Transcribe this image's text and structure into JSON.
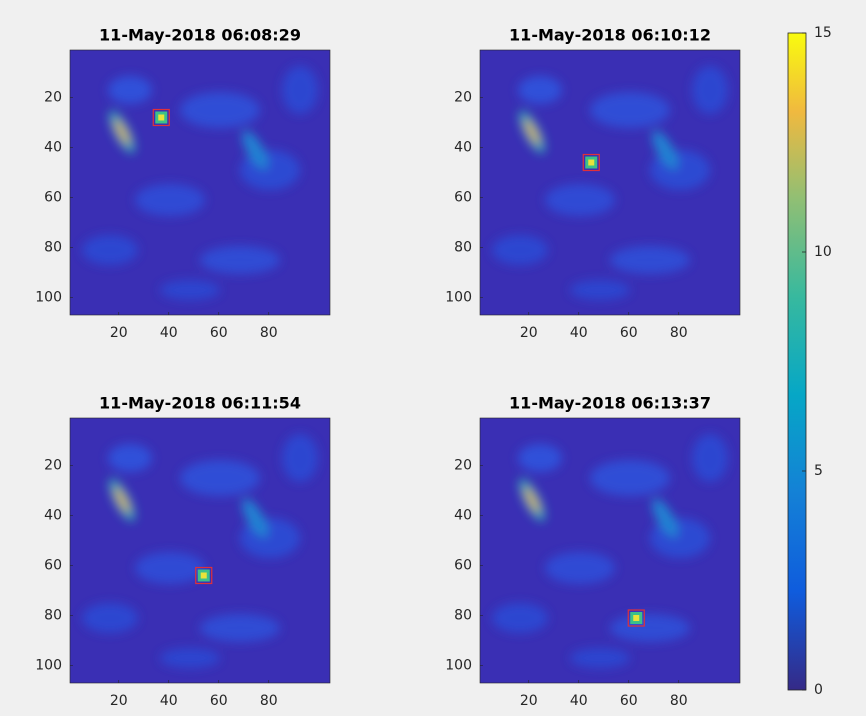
{
  "chart_data": [
    {
      "type": "heatmap",
      "title": "11-May-2018 06:08:29",
      "xlim": [
        0.5,
        104.5
      ],
      "ylim": [
        1,
        107
      ],
      "y_reversed": true,
      "xticks": [
        20,
        40,
        60,
        80
      ],
      "yticks": [
        20,
        40,
        60,
        80,
        100
      ],
      "marker": {
        "x": 37,
        "y": 28
      },
      "marker_color": "#e0303a"
    },
    {
      "type": "heatmap",
      "title": "11-May-2018 06:10:12",
      "xlim": [
        0.5,
        104.5
      ],
      "ylim": [
        1,
        107
      ],
      "y_reversed": true,
      "xticks": [
        20,
        40,
        60,
        80
      ],
      "yticks": [
        20,
        40,
        60,
        80,
        100
      ],
      "marker": {
        "x": 45,
        "y": 46
      },
      "marker_color": "#e0303a"
    },
    {
      "type": "heatmap",
      "title": "11-May-2018 06:11:54",
      "xlim": [
        0.5,
        104.5
      ],
      "ylim": [
        1,
        107
      ],
      "y_reversed": true,
      "xticks": [
        20,
        40,
        60,
        80
      ],
      "yticks": [
        20,
        40,
        60,
        80,
        100
      ],
      "marker": {
        "x": 54,
        "y": 64
      },
      "marker_color": "#e0303a"
    },
    {
      "type": "heatmap",
      "title": "11-May-2018 06:13:37",
      "xlim": [
        0.5,
        104.5
      ],
      "ylim": [
        1,
        107
      ],
      "y_reversed": true,
      "xticks": [
        20,
        40,
        60,
        80
      ],
      "yticks": [
        20,
        40,
        60,
        80,
        100
      ],
      "marker": {
        "x": 63,
        "y": 81
      },
      "marker_color": "#e0303a"
    }
  ],
  "colorbar": {
    "clim": [
      0,
      15
    ],
    "ticks": [
      0,
      5,
      10,
      15
    ]
  }
}
